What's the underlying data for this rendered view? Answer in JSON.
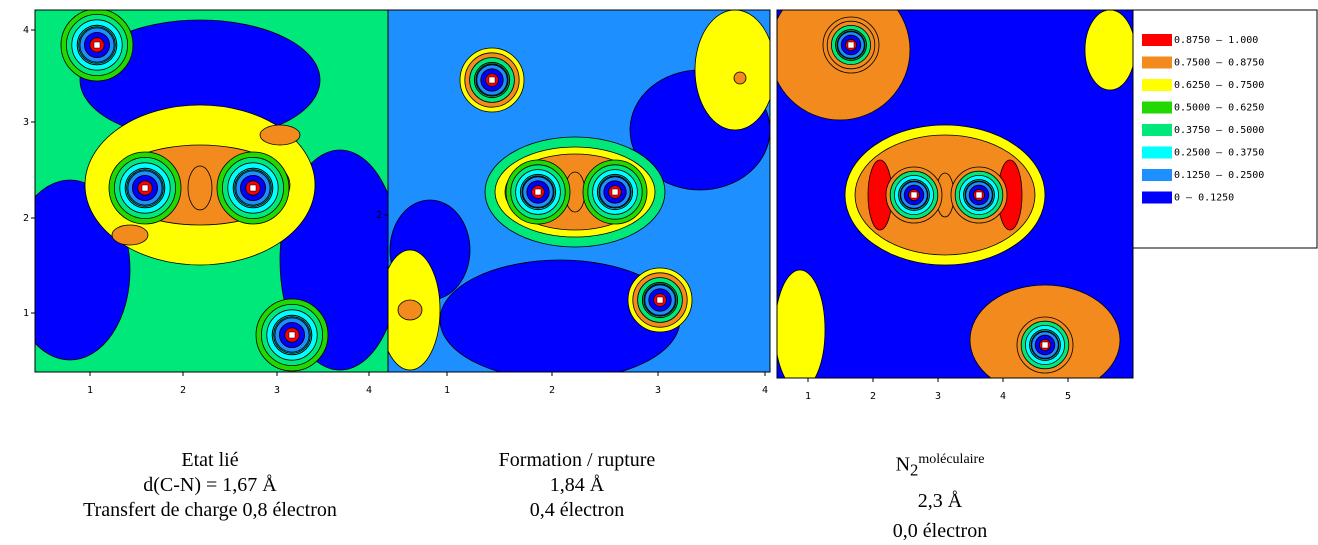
{
  "panels": [
    {
      "x_ticks": [
        "1",
        "2",
        "3",
        "4"
      ],
      "y_ticks": [
        "4",
        "3",
        "2",
        "1"
      ],
      "caption": [
        "Etat lié",
        "d(C-N) = 1,67 Å",
        "Transfert de charge 0,8 électron"
      ]
    },
    {
      "x_ticks": [
        "1",
        "2",
        "3",
        "4"
      ],
      "y_ticks": [
        "2"
      ],
      "caption": [
        "Formation / rupture",
        "1,84 Å",
        "0,4 électron"
      ]
    },
    {
      "x_ticks": [
        "1",
        "2",
        "3",
        "4",
        "5"
      ],
      "caption_formula": {
        "symbol": "N",
        "subscript": "2",
        "superscript": "moléculaire"
      },
      "caption": [
        "2,3 Å",
        "0,0 électron"
      ]
    }
  ],
  "legend": [
    {
      "label": "0.8750  –  1.000",
      "color": "#ff0000"
    },
    {
      "label": "0.7500  –  0.8750",
      "color": "#f28a1e"
    },
    {
      "label": "0.6250  –  0.7500",
      "color": "#ffff00"
    },
    {
      "label": "0.5000  –  0.6250",
      "color": "#22d800"
    },
    {
      "label": "0.3750  –  0.5000",
      "color": "#00e87a"
    },
    {
      "label": "0.2500  –  0.3750",
      "color": "#00ffff"
    },
    {
      "label": "0.1250  –  0.2500",
      "color": "#1e8fff"
    },
    {
      "label": "0  –  0.1250",
      "color": "#0000ff"
    }
  ]
}
